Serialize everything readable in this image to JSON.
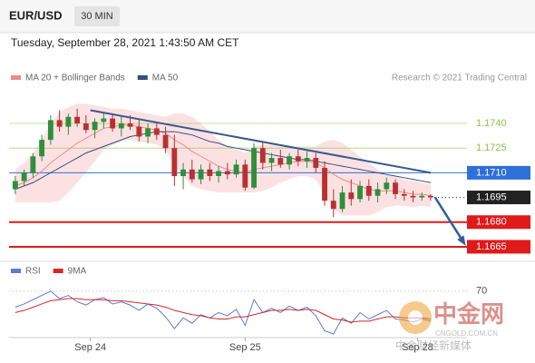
{
  "chart_data": {
    "type": "candlestick",
    "title": "EUR/USD",
    "timeframe": "30 MIN",
    "subtitle": "Tuesday, September 28, 2021 1:43:50 AM CET",
    "source": "Research © 2021 Trading Central",
    "up_color": "#2f8f3a",
    "down_color": "#b8312f",
    "candles": {
      "open": [
        1.17,
        1.1705,
        1.171,
        1.172,
        1.173,
        1.1742,
        1.1738,
        1.1744,
        1.174,
        1.1736,
        1.1741,
        1.1743,
        1.1737,
        1.174,
        1.1738,
        1.1732,
        1.1737,
        1.1733,
        1.1725,
        1.1708,
        1.1712,
        1.1706,
        1.1712,
        1.1708,
        1.1711,
        1.1709,
        1.1715,
        1.1701,
        1.1725,
        1.1716,
        1.1719,
        1.1715,
        1.172,
        1.1717,
        1.1719,
        1.1713,
        1.1693,
        1.1688,
        1.1698,
        1.1694,
        1.1702,
        1.1696,
        1.17,
        1.1704,
        1.1697,
        1.1696,
        1.1695,
        1.1696
      ],
      "high": [
        1.1708,
        1.1712,
        1.1722,
        1.1733,
        1.1745,
        1.1748,
        1.1746,
        1.1749,
        1.1745,
        1.1743,
        1.1747,
        1.1746,
        1.1744,
        1.1745,
        1.1742,
        1.174,
        1.1741,
        1.1738,
        1.1733,
        1.1716,
        1.1718,
        1.1715,
        1.1716,
        1.1714,
        1.1716,
        1.1718,
        1.1718,
        1.1728,
        1.1729,
        1.1722,
        1.1724,
        1.1722,
        1.1724,
        1.1723,
        1.1722,
        1.1717,
        1.17,
        1.1702,
        1.1706,
        1.1705,
        1.1706,
        1.1704,
        1.1707,
        1.1706,
        1.17,
        1.1699,
        1.1698,
        1.1697
      ],
      "low": [
        1.1697,
        1.1702,
        1.1707,
        1.1717,
        1.1727,
        1.1735,
        1.1733,
        1.1738,
        1.1734,
        1.1731,
        1.1737,
        1.1735,
        1.1732,
        1.1736,
        1.1729,
        1.1728,
        1.173,
        1.1722,
        1.1702,
        1.17,
        1.1704,
        1.1703,
        1.1705,
        1.1704,
        1.1706,
        1.1707,
        1.1699,
        1.17,
        1.1712,
        1.1711,
        1.1713,
        1.1712,
        1.1714,
        1.1713,
        1.171,
        1.169,
        1.1683,
        1.1686,
        1.169,
        1.1692,
        1.1693,
        1.1692,
        1.1697,
        1.1694,
        1.1693,
        1.1692,
        1.1693,
        1.1693
      ],
      "close": [
        1.1705,
        1.171,
        1.172,
        1.173,
        1.1742,
        1.1738,
        1.1744,
        1.174,
        1.1736,
        1.1741,
        1.1743,
        1.1737,
        1.174,
        1.1738,
        1.1732,
        1.1737,
        1.1733,
        1.1725,
        1.1708,
        1.1712,
        1.1706,
        1.1712,
        1.1708,
        1.1711,
        1.1709,
        1.1715,
        1.1701,
        1.1725,
        1.1716,
        1.1719,
        1.1715,
        1.172,
        1.1717,
        1.1719,
        1.1713,
        1.1693,
        1.1688,
        1.1698,
        1.1694,
        1.1702,
        1.1696,
        1.17,
        1.1704,
        1.1697,
        1.1696,
        1.1695,
        1.1696,
        1.1695
      ]
    },
    "series": [
      {
        "name": "MA 20 + Bollinger Bands",
        "color": "#f08a8a",
        "values": [
          1.1702,
          1.1704,
          1.1707,
          1.1711,
          1.1716,
          1.172,
          1.1724,
          1.1728,
          1.1731,
          1.1734,
          1.1737,
          1.1738,
          1.1739,
          1.1739,
          1.1738,
          1.1737,
          1.1736,
          1.1734,
          1.173,
          1.1727,
          1.1723,
          1.172,
          1.1717,
          1.1714,
          1.1712,
          1.1711,
          1.171,
          1.1712,
          1.1713,
          1.1714,
          1.1715,
          1.1716,
          1.1717,
          1.1717,
          1.1716,
          1.1713,
          1.1709,
          1.1706,
          1.1704,
          1.1702,
          1.17,
          1.1699,
          1.1699,
          1.1699,
          1.1698,
          1.1697,
          1.1697,
          1.1696
        ]
      },
      {
        "name": "MA 50",
        "color": "#2f4f7f",
        "values": [
          1.17,
          1.1702,
          1.1704,
          1.1707,
          1.171,
          1.1713,
          1.1716,
          1.1719,
          1.1722,
          1.1724,
          1.1726,
          1.1728,
          1.173,
          1.1732,
          1.1733,
          1.1734,
          1.1735,
          1.1735,
          1.1735,
          1.1734,
          1.1733,
          1.1731,
          1.1729,
          1.1728,
          1.1726,
          1.1725,
          1.1724,
          1.1723,
          1.1722,
          1.1721,
          1.172,
          1.1719,
          1.1718,
          1.1718,
          1.1717,
          1.1716,
          1.1715,
          1.1714,
          1.1713,
          1.1712,
          1.1711,
          1.171,
          1.1709,
          1.1708,
          1.1707,
          1.1706,
          1.1705,
          1.1704
        ]
      }
    ],
    "bb_color": "#fbd9dc",
    "bb_upper": [
      1.1712,
      1.1716,
      1.1722,
      1.173,
      1.174,
      1.1747,
      1.175,
      1.1752,
      1.1752,
      1.1751,
      1.175,
      1.1749,
      1.1749,
      1.1748,
      1.1747,
      1.1746,
      1.1745,
      1.1744,
      1.1746,
      1.1746,
      1.1744,
      1.174,
      1.1735,
      1.173,
      1.1726,
      1.1724,
      1.1722,
      1.1726,
      1.1727,
      1.1727,
      1.1726,
      1.1726,
      1.1726,
      1.1726,
      1.1726,
      1.1729,
      1.173,
      1.1728,
      1.1724,
      1.172,
      1.1716,
      1.1712,
      1.1709,
      1.1708,
      1.1706,
      1.1705,
      1.1704,
      1.1703
    ],
    "bb_lower": [
      1.1692,
      1.1692,
      1.1692,
      1.1692,
      1.1692,
      1.1693,
      1.1698,
      1.1704,
      1.171,
      1.1717,
      1.1724,
      1.1727,
      1.1729,
      1.173,
      1.1729,
      1.1728,
      1.1727,
      1.1724,
      1.1714,
      1.1708,
      1.1702,
      1.17,
      1.1699,
      1.1698,
      1.1698,
      1.1698,
      1.1698,
      1.1698,
      1.1699,
      1.1701,
      1.1704,
      1.1706,
      1.1708,
      1.1708,
      1.1706,
      1.1697,
      1.1688,
      1.1684,
      1.1684,
      1.1684,
      1.1684,
      1.1686,
      1.1689,
      1.169,
      1.169,
      1.1689,
      1.169,
      1.1689
    ],
    "trendline": {
      "color": "#3a5a8c",
      "x": [
        8.5,
        47
      ],
      "values": [
        1.1748,
        1.171
      ]
    },
    "forecast_arrow": {
      "color": "#2f5f9f",
      "x": [
        47.5,
        50.8
      ],
      "values": [
        1.1695,
        1.1667
      ]
    },
    "levels": [
      {
        "value": 1.174,
        "label": "1.1740",
        "color": "#8bc34a",
        "style": "resistance"
      },
      {
        "value": 1.1725,
        "label": "1.1725",
        "color": "#8bc34a",
        "style": "resistance"
      },
      {
        "value": 1.171,
        "label": "1.1710",
        "color": "#2e6fd8",
        "style": "pivot"
      },
      {
        "value": 1.1695,
        "label": "1.1695",
        "color": "#222222",
        "style": "last"
      },
      {
        "value": 1.168,
        "label": "1.1680",
        "color": "#e01a1a",
        "style": "support"
      },
      {
        "value": 1.1665,
        "label": "1.1665",
        "color": "#e01a1a",
        "style": "support"
      }
    ],
    "xlim": [
      -0.5,
      51
    ],
    "ylim": [
      1.166,
      1.1756
    ],
    "xticks": [
      {
        "value": 8.5,
        "label": "Sep 24"
      },
      {
        "value": 26,
        "label": "Sep 25"
      },
      {
        "value": 45.5,
        "label": "Sep 28"
      }
    ],
    "rsi": {
      "ylim": [
        30,
        80
      ],
      "yticks": [
        70
      ],
      "series": [
        {
          "name": "RSI",
          "color": "#5b7bd5",
          "values": [
            55,
            58,
            62,
            66,
            70,
            63,
            66,
            60,
            57,
            62,
            64,
            58,
            60,
            57,
            52,
            58,
            54,
            46,
            35,
            45,
            40,
            48,
            45,
            50,
            47,
            53,
            38,
            62,
            50,
            54,
            50,
            56,
            52,
            55,
            47,
            33,
            30,
            45,
            40,
            50,
            44,
            48,
            52,
            44,
            43,
            41,
            44,
            42
          ]
        },
        {
          "name": "9MA",
          "color": "#d62728",
          "values": [
            50,
            52,
            55,
            58,
            61,
            62,
            63,
            63,
            62,
            62,
            62,
            61,
            61,
            60,
            59,
            58,
            57,
            55,
            52,
            50,
            48,
            47,
            45,
            44,
            44,
            46,
            46,
            48,
            50,
            52,
            52,
            53,
            52,
            53,
            52,
            48,
            44,
            43,
            41,
            42,
            42,
            44,
            46,
            46,
            45,
            45,
            45,
            44
          ]
        }
      ]
    },
    "watermark": {
      "name": "中金网",
      "site": "CNGOLD.COM.CN",
      "slogan": "中金财经新媒体"
    }
  }
}
